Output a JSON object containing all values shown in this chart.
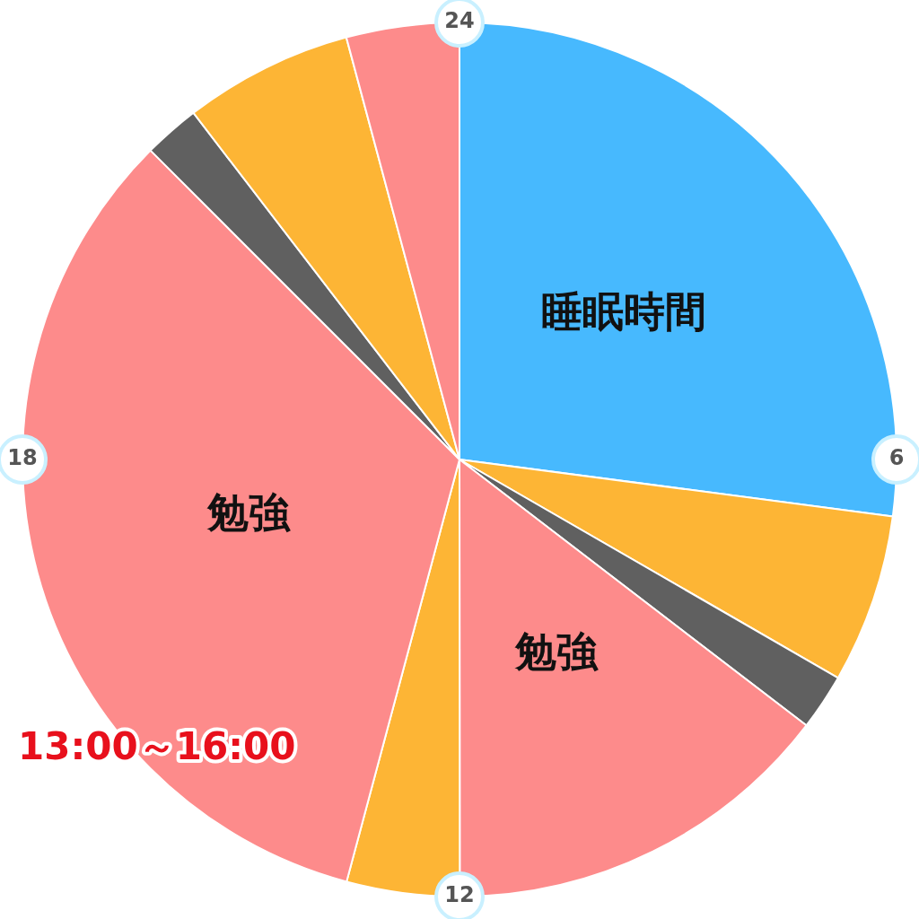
{
  "chart_data": {
    "type": "pie",
    "categories": [
      "睡眠時間",
      null,
      null,
      "勉強",
      null,
      "勉強",
      null,
      null,
      null
    ],
    "values": [
      27.08,
      6.25,
      2.08,
      14.58,
      4.17,
      33.34,
      2.08,
      6.25,
      4.17
    ],
    "colors": [
      "#47b9fe",
      "#fdb535",
      "#606060",
      "#fd8b8b",
      "#fdb535",
      "#fd8b8b",
      "#606060",
      "#fdb535",
      "#fd8b8b"
    ],
    "annotations": [
      "24",
      "6",
      "12",
      "18",
      "13:00～16:00"
    ],
    "legend": false
  }
}
